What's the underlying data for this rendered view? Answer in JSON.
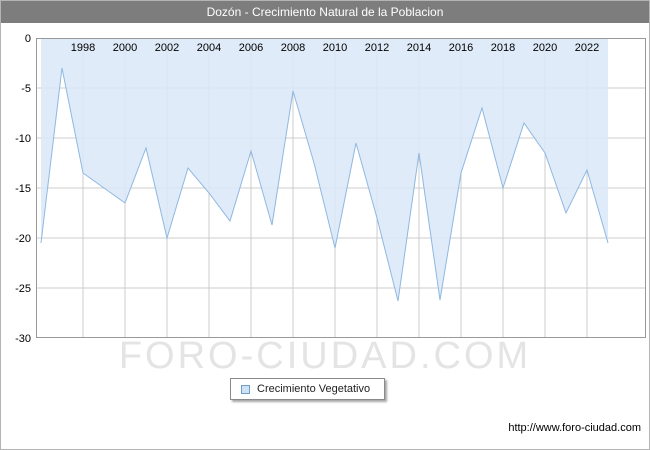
{
  "header": {
    "title": "Dozón - Crecimiento Natural de la Poblacion"
  },
  "legend": {
    "label": "Crecimiento Vegetativo"
  },
  "watermark": "FORO-CIUDAD.COM",
  "footer": {
    "url": "http://www.foro-ciudad.com"
  },
  "colors": {
    "title_bar": "#7d7d7d",
    "area_fill": "#d9e7f8",
    "line": "#8fb8e0",
    "grid": "#cccccc",
    "plot_border": "#999999",
    "axis_text": "#000000",
    "watermark": "#e4e4e4",
    "legend_marker_fill": "#cfe2f5",
    "legend_marker_border": "#6f9fc8"
  },
  "chart_data": {
    "type": "area",
    "title": "Dozón - Crecimiento Natural de la Poblacion",
    "x": [
      1996,
      1997,
      1998,
      1999,
      2000,
      2001,
      2002,
      2003,
      2004,
      2005,
      2006,
      2007,
      2008,
      2009,
      2010,
      2011,
      2012,
      2013,
      2014,
      2015,
      2016,
      2017,
      2018,
      2019,
      2020,
      2021,
      2022,
      2023
    ],
    "series": [
      {
        "name": "Crecimiento Vegetativo",
        "values": [
          -20.5,
          -3,
          -13.5,
          -15,
          -16.5,
          -11,
          -20,
          -13,
          -15.5,
          -18.3,
          -11.3,
          -18.7,
          -5.3,
          -12.5,
          -21,
          -10.5,
          -18,
          -26.3,
          -11.5,
          -26.2,
          -13.5,
          -7,
          -15,
          -8.5,
          -11.5,
          -17.5,
          -13.2,
          -20.5
        ]
      }
    ],
    "xlabel": "",
    "ylabel": "",
    "ylim": [
      -30,
      0
    ],
    "yticks": [
      0,
      -5,
      -10,
      -15,
      -20,
      -25,
      -30
    ],
    "xticks": [
      1998,
      2000,
      2002,
      2004,
      2006,
      2008,
      2010,
      2012,
      2014,
      2016,
      2018,
      2020,
      2022
    ],
    "grid": true,
    "legend_position": "bottom",
    "xtick_labels_position": "inside-top"
  }
}
